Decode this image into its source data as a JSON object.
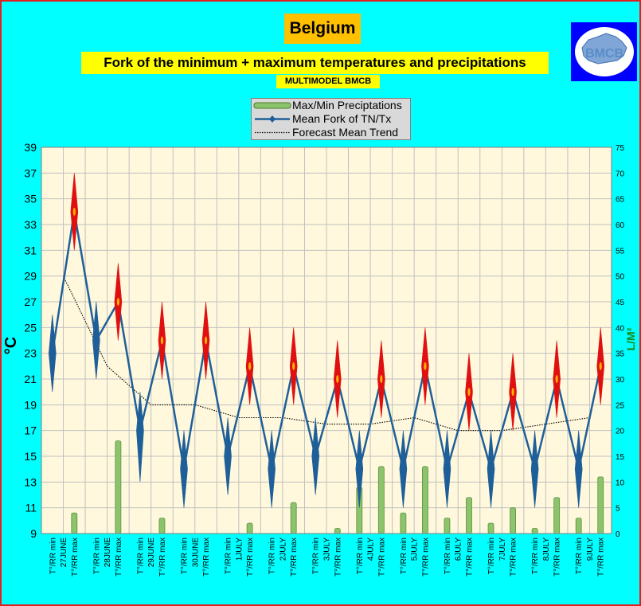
{
  "header": {
    "title": "Belgium",
    "subtitle": "Fork of the minimum + maximum temperatures and precipitations",
    "model": "MULTIMODEL BMCB",
    "logo_text": "BMCB"
  },
  "colors": {
    "background": "#00ffff",
    "plot_area": "#fff8dc",
    "gridline": "#c0c0c0",
    "fork_line": "#1f5f99",
    "diamond_min": "#1f5f99",
    "diamond_max": "#e01010",
    "precip_bar": "#8bc46a",
    "trend_line": "#000000",
    "right_axis_label": "#1a8a1a"
  },
  "chart_data": {
    "type": "line",
    "legend": {
      "position": "top",
      "entries": [
        "Max/Min Preciptations",
        "Mean Fork of TN/Tx",
        "Forecast Mean Trend"
      ]
    },
    "ylabel": "°C",
    "y2label": "L/M²",
    "ylim": [
      9,
      39
    ],
    "y2lim": [
      0,
      75
    ],
    "yticks": [
      "39",
      "37",
      "35",
      "33",
      "31",
      "29",
      "27",
      "25",
      "23",
      "21",
      "19",
      "17",
      "15",
      "13",
      "11",
      "9"
    ],
    "y2ticks": [
      "75",
      "70",
      "65",
      "60",
      "55",
      "50",
      "45",
      "40",
      "35",
      "30",
      "25",
      "20",
      "15",
      "10",
      "5",
      "0"
    ],
    "grid": true,
    "days": [
      {
        "date": "27JUNE",
        "min_label": "T°/RR min",
        "max_label": "T°/RR max",
        "tmin": 23,
        "tmin_low": 20,
        "tmin_high": 26,
        "tmax": 34,
        "tmax_low": 31,
        "tmax_high": 37,
        "rr_min": 0,
        "rr_max": 4,
        "trend": 29
      },
      {
        "date": "28JUNE",
        "min_label": "T°/RR min",
        "max_label": "T°/RR max",
        "tmin": 24,
        "tmin_low": 21,
        "tmin_high": 27,
        "tmax": 27,
        "tmax_low": 24,
        "tmax_high": 30,
        "rr_min": 0,
        "rr_max": 18,
        "trend": 22
      },
      {
        "date": "29JUNE",
        "min_label": "T°/RR min",
        "max_label": "T°/RR max",
        "tmin": 17,
        "tmin_low": 13,
        "tmin_high": 20,
        "tmax": 24,
        "tmax_low": 21,
        "tmax_high": 27,
        "rr_min": 0,
        "rr_max": 3,
        "trend": 19
      },
      {
        "date": "30JUNE",
        "min_label": "T°/RR min",
        "max_label": "T°/RR max",
        "tmin": 14,
        "tmin_low": 11,
        "tmin_high": 17,
        "tmax": 24,
        "tmax_low": 21,
        "tmax_high": 27,
        "rr_min": 0,
        "rr_max": 0,
        "trend": 19
      },
      {
        "date": "1JULY",
        "min_label": "T°/RR min",
        "max_label": "T°/RR max",
        "tmin": 15,
        "tmin_low": 12,
        "tmin_high": 18,
        "tmax": 22,
        "tmax_low": 19,
        "tmax_high": 25,
        "rr_min": 0,
        "rr_max": 2,
        "trend": 18
      },
      {
        "date": "2JULY",
        "min_label": "T°/RR min",
        "max_label": "T°/RR max",
        "tmin": 14,
        "tmin_low": 11,
        "tmin_high": 17,
        "tmax": 22,
        "tmax_low": 19,
        "tmax_high": 25,
        "rr_min": 0,
        "rr_max": 6,
        "trend": 18
      },
      {
        "date": "3JULY",
        "min_label": "T°/RR min",
        "max_label": "T°/RR max",
        "tmin": 15,
        "tmin_low": 12,
        "tmin_high": 18,
        "tmax": 21,
        "tmax_low": 18,
        "tmax_high": 24,
        "rr_min": 0,
        "rr_max": 1,
        "trend": 17.5
      },
      {
        "date": "4JULY",
        "min_label": "T°/RR min",
        "max_label": "T°/RR max",
        "tmin": 14,
        "tmin_low": 11,
        "tmin_high": 17,
        "tmax": 21,
        "tmax_low": 18,
        "tmax_high": 24,
        "rr_min": 9,
        "rr_max": 13,
        "trend": 17.5
      },
      {
        "date": "5JULY",
        "min_label": "T°/RR min",
        "max_label": "T°/RR max",
        "tmin": 14,
        "tmin_low": 11,
        "tmin_high": 17,
        "tmax": 22,
        "tmax_low": 19,
        "tmax_high": 25,
        "rr_min": 4,
        "rr_max": 13,
        "trend": 18
      },
      {
        "date": "6JULY",
        "min_label": "T°/RR min",
        "max_label": "T°/RR max",
        "tmin": 14,
        "tmin_low": 11,
        "tmin_high": 17,
        "tmax": 20,
        "tmax_low": 17,
        "tmax_high": 23,
        "rr_min": 3,
        "rr_max": 7,
        "trend": 17
      },
      {
        "date": "7JULY",
        "min_label": "T°/RR min",
        "max_label": "T°/RR max",
        "tmin": 14,
        "tmin_low": 11,
        "tmin_high": 17,
        "tmax": 20,
        "tmax_low": 17,
        "tmax_high": 23,
        "rr_min": 2,
        "rr_max": 5,
        "trend": 17
      },
      {
        "date": "8JULY",
        "min_label": "T°/RR min",
        "max_label": "T°/RR max",
        "tmin": 14,
        "tmin_low": 11,
        "tmin_high": 17,
        "tmax": 21,
        "tmax_low": 18,
        "tmax_high": 24,
        "rr_min": 1,
        "rr_max": 7,
        "trend": 17.5
      },
      {
        "date": "9JULY",
        "min_label": "T°/RR min",
        "max_label": "T°/RR max",
        "tmin": 14,
        "tmin_low": 11,
        "tmin_high": 17,
        "tmax": 22,
        "tmax_low": 19,
        "tmax_high": 25,
        "rr_min": 3,
        "rr_max": 11,
        "trend": 18
      }
    ]
  }
}
